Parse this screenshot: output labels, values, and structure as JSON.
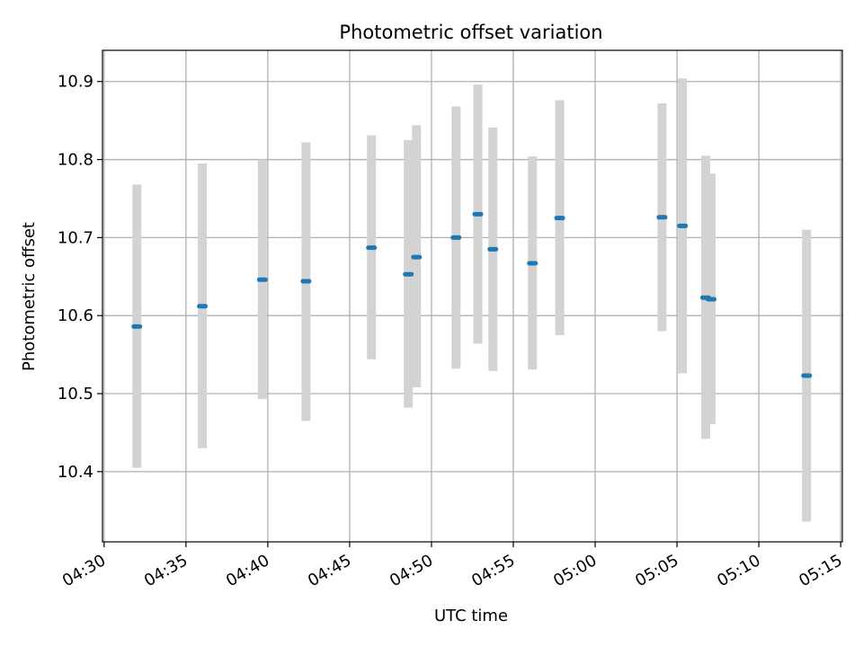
{
  "chart_data": {
    "type": "scatter",
    "title": "Photometric offset variation",
    "xlabel": "UTC time",
    "ylabel": "Photometric offset",
    "grid": true,
    "x_ticks": [
      "04:30",
      "04:35",
      "04:40",
      "04:45",
      "04:50",
      "04:55",
      "05:00",
      "05:05",
      "05:10",
      "05:15"
    ],
    "y_ticks": [
      "10.4",
      "10.5",
      "10.6",
      "10.7",
      "10.8",
      "10.9"
    ],
    "xlim": [
      "04:29:54",
      "05:15:06"
    ],
    "ylim": [
      10.31,
      10.94
    ],
    "colors": {
      "point": "#1f77b4",
      "errorbar": "#d3d3d3",
      "grid": "#b0b0b0"
    },
    "points": [
      {
        "time": "04:32:00",
        "y": 10.586,
        "lo": 10.405,
        "hi": 10.768
      },
      {
        "time": "04:36:00",
        "y": 10.612,
        "lo": 10.43,
        "hi": 10.795
      },
      {
        "time": "04:39:40",
        "y": 10.646,
        "lo": 10.493,
        "hi": 10.8
      },
      {
        "time": "04:42:20",
        "y": 10.644,
        "lo": 10.465,
        "hi": 10.822
      },
      {
        "time": "04:46:20",
        "y": 10.687,
        "lo": 10.544,
        "hi": 10.831
      },
      {
        "time": "04:48:35",
        "y": 10.653,
        "lo": 10.482,
        "hi": 10.825
      },
      {
        "time": "04:49:05",
        "y": 10.675,
        "lo": 10.508,
        "hi": 10.844
      },
      {
        "time": "04:51:30",
        "y": 10.7,
        "lo": 10.532,
        "hi": 10.868
      },
      {
        "time": "04:52:50",
        "y": 10.73,
        "lo": 10.564,
        "hi": 10.896
      },
      {
        "time": "04:53:45",
        "y": 10.685,
        "lo": 10.529,
        "hi": 10.841
      },
      {
        "time": "04:56:10",
        "y": 10.667,
        "lo": 10.531,
        "hi": 10.804
      },
      {
        "time": "04:57:50",
        "y": 10.725,
        "lo": 10.575,
        "hi": 10.876
      },
      {
        "time": "05:04:05",
        "y": 10.726,
        "lo": 10.58,
        "hi": 10.872
      },
      {
        "time": "05:05:20",
        "y": 10.715,
        "lo": 10.526,
        "hi": 10.904
      },
      {
        "time": "05:06:45",
        "y": 10.623,
        "lo": 10.442,
        "hi": 10.805
      },
      {
        "time": "05:07:05",
        "y": 10.621,
        "lo": 10.461,
        "hi": 10.782
      },
      {
        "time": "05:12:55",
        "y": 10.523,
        "lo": 10.336,
        "hi": 10.71
      }
    ]
  }
}
